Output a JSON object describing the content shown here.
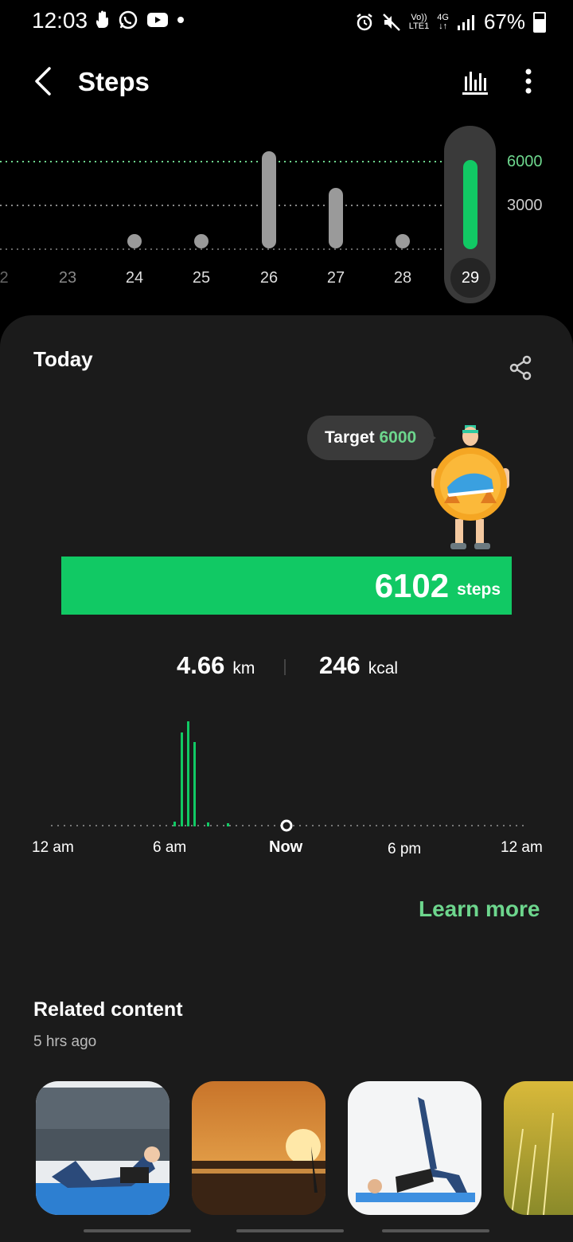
{
  "status": {
    "time": "12:03",
    "battery": "67%",
    "net_top": "Vo))",
    "net_bottom": "LTE1",
    "gen": "4G"
  },
  "header": {
    "title": "Steps"
  },
  "day_chart": {
    "days": [
      "2",
      "23",
      "24",
      "25",
      "26",
      "27",
      "28",
      "29"
    ],
    "selected_day": "29",
    "y_labels": [
      "6000",
      "3000"
    ],
    "target_color": "#6dd68d",
    "bar_color": "#11c964"
  },
  "today": {
    "title": "Today",
    "target_label": "Target",
    "target_value": "6000",
    "steps_value": "6102",
    "steps_unit": "steps",
    "distance_value": "4.66",
    "distance_unit": "km",
    "calories_value": "246",
    "calories_unit": "kcal"
  },
  "hourly_chart": {
    "x_labels": [
      "12 am",
      "6 am",
      "Now",
      "6 pm",
      "12 am"
    ]
  },
  "learn_more": "Learn more",
  "related": {
    "title": "Related content",
    "time": "5 hrs ago"
  },
  "colors": {
    "accent": "#11c964",
    "accent_text": "#6dd68d",
    "card": "#1b1b1b"
  }
}
